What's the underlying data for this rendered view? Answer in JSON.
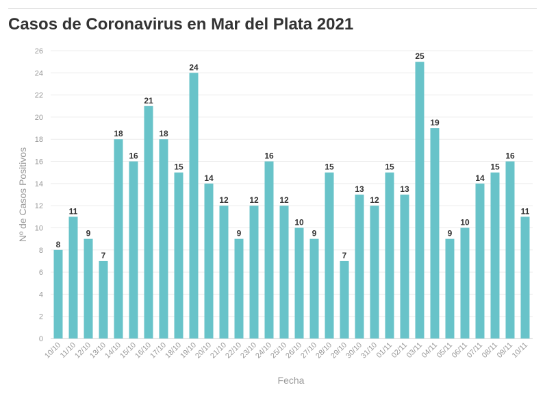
{
  "chart_data": {
    "type": "bar",
    "title": "Casos de Coronavirus en Mar del Plata 2021",
    "xlabel": "Fecha",
    "ylabel": "Nº de Casos Positivos",
    "ylim": [
      0,
      26
    ],
    "yticks": [
      0,
      2,
      4,
      6,
      8,
      10,
      12,
      14,
      16,
      18,
      20,
      22,
      24,
      26
    ],
    "grid": true,
    "bar_color": "#68c3c9",
    "categories": [
      "10/10",
      "11/10",
      "12/10",
      "13/10",
      "14/10",
      "15/10",
      "16/10",
      "17/10",
      "18/10",
      "19/10",
      "20/10",
      "21/10",
      "22/10",
      "23/10",
      "24/10",
      "25/10",
      "26/10",
      "27/10",
      "28/10",
      "29/10",
      "30/10",
      "31/10",
      "01/11",
      "02/11",
      "03/11",
      "04/11",
      "05/11",
      "06/11",
      "07/11",
      "08/11",
      "09/11",
      "10/11"
    ],
    "values": [
      8,
      11,
      9,
      7,
      18,
      16,
      21,
      18,
      15,
      24,
      14,
      12,
      9,
      12,
      16,
      12,
      10,
      9,
      15,
      7,
      13,
      12,
      15,
      13,
      25,
      19,
      9,
      10,
      14,
      15,
      16,
      11
    ]
  }
}
